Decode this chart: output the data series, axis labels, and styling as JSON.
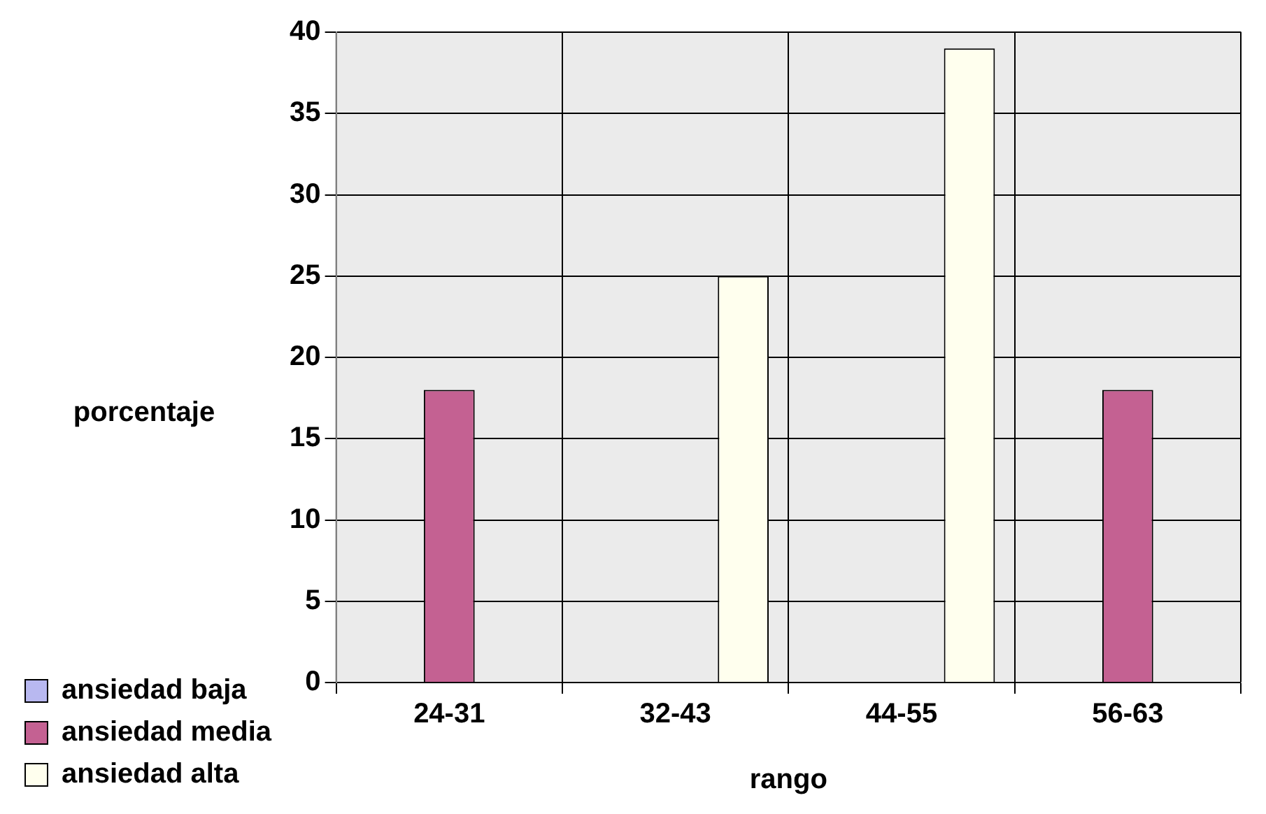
{
  "chart_data": {
    "type": "bar",
    "xlabel": "rango",
    "ylabel": "porcentaje",
    "categories": [
      "24-31",
      "32-43",
      "44-55",
      "56-63"
    ],
    "series": [
      {
        "name": "ansiedad baja",
        "color": "#b8b8f0",
        "values": [
          0,
          0,
          0,
          0
        ]
      },
      {
        "name": "ansiedad media",
        "color": "#c46192",
        "values": [
          18,
          0,
          0,
          18
        ]
      },
      {
        "name": "ansiedad alta",
        "color": "#ffffee",
        "values": [
          0,
          25,
          39,
          0
        ]
      }
    ],
    "ylim": [
      0,
      40
    ],
    "yticks": [
      0,
      5,
      10,
      15,
      20,
      25,
      30,
      35,
      40
    ],
    "grid": true,
    "legend": "bottom left"
  }
}
